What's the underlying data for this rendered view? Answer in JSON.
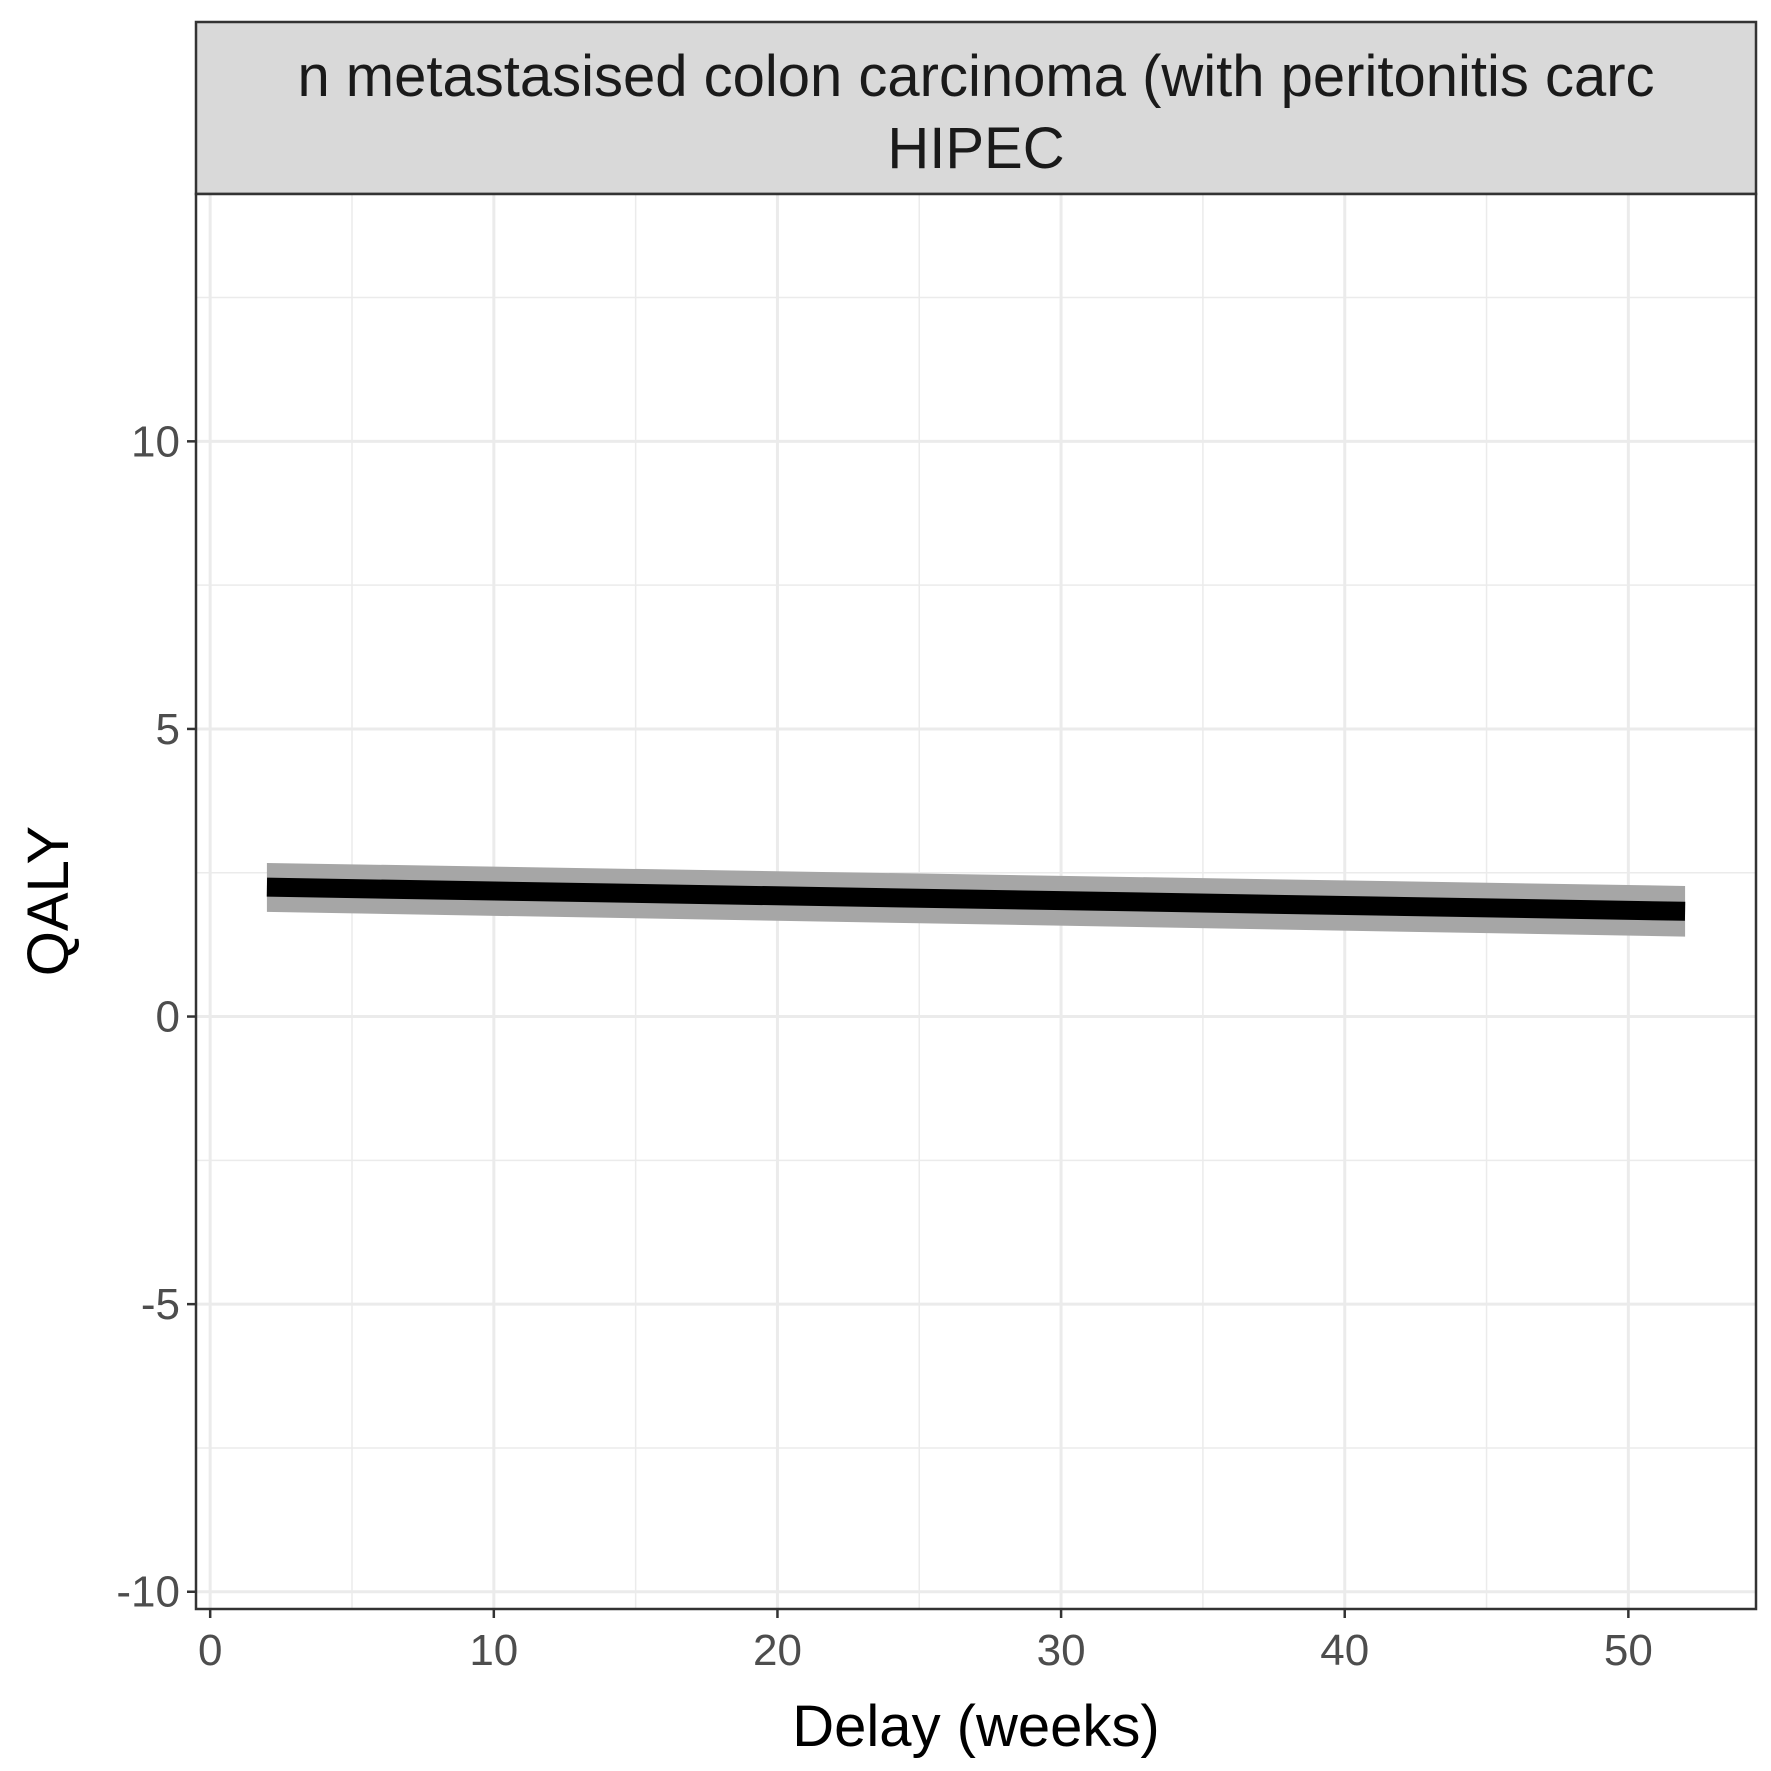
{
  "chart_data": {
    "type": "line",
    "facet_strip": {
      "line1": "n metastasised colon carcinoma (with peritonitis carc",
      "line2": "HIPEC"
    },
    "xlabel": "Delay (weeks)",
    "ylabel": "QALY",
    "xlim": [
      -0.5,
      54.5
    ],
    "ylim": [
      -10.3,
      14.3
    ],
    "x_ticks": [
      0,
      10,
      20,
      30,
      40,
      50
    ],
    "x_tick_labels": [
      "0",
      "10",
      "20",
      "30",
      "40",
      "50"
    ],
    "y_ticks": [
      -10,
      -5,
      0,
      5,
      10
    ],
    "y_tick_labels": [
      "-10",
      "-5",
      "0",
      "5",
      "10"
    ],
    "grid": true,
    "legend": "none",
    "series": [
      {
        "x": [
          2,
          52
        ],
        "y": [
          2.25,
          1.83
        ],
        "lower": [
          1.82,
          1.39
        ],
        "upper": [
          2.67,
          2.27
        ]
      }
    ],
    "colors": {
      "line": "#000000",
      "ribbon": "#a6a6a6",
      "strip_bg": "#d9d9d9",
      "grid": "#ebebeb",
      "panel_border": "#333333"
    }
  }
}
